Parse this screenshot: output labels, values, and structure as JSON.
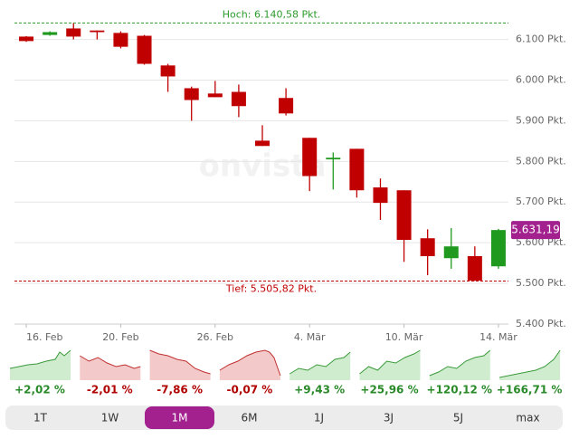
{
  "chart_data": {
    "type": "candlestick",
    "categories": [
      "16. Feb",
      null,
      null,
      null,
      "20. Feb",
      null,
      null,
      null,
      "26. Feb",
      null,
      null,
      null,
      "4. Mär",
      null,
      null,
      null,
      "10. Mär",
      null,
      null,
      null,
      "14. Mär"
    ],
    "series": [
      {
        "name": "open",
        "values": [
          6107,
          6111,
          6127,
          6122,
          6116,
          6109,
          6036,
          5980,
          5967,
          5971,
          5851,
          5956,
          5858,
          5805,
          5831,
          5736,
          5729,
          5611,
          5562,
          5567,
          5542
        ]
      },
      {
        "name": "high",
        "values": [
          6108,
          6120,
          6140,
          6122,
          6120,
          6111,
          6040,
          5984,
          5998,
          5989,
          5889,
          5980,
          5858,
          5822,
          5831,
          5758,
          5729,
          5633,
          5636,
          5591,
          5634
        ]
      },
      {
        "name": "low",
        "values": [
          6094,
          6109,
          6100,
          6100,
          6078,
          6038,
          5971,
          5900,
          5958,
          5909,
          5838,
          5913,
          5727,
          5731,
          5711,
          5656,
          5553,
          5520,
          5536,
          5506,
          5536
        ]
      },
      {
        "name": "close",
        "values": [
          6096,
          6118,
          6107,
          6118,
          6082,
          6040,
          6009,
          5951,
          5958,
          5936,
          5838,
          5918,
          5764,
          5809,
          5729,
          5698,
          5607,
          5567,
          5591,
          5507,
          5631.19
        ]
      }
    ],
    "up_color": "#1f9a1f",
    "down_color": "#c00000",
    "ylim": [
      5400,
      6197
    ],
    "yticks": [
      {
        "value": 5400,
        "label": "5.400 Pkt."
      },
      {
        "value": 5500,
        "label": "5.500 Pkt."
      },
      {
        "value": 5600,
        "label": "5.600 Pkt."
      },
      {
        "value": 5700,
        "label": "5.700 Pkt."
      },
      {
        "value": 5800,
        "label": "5.800 Pkt."
      },
      {
        "value": 5900,
        "label": "5.900 Pkt."
      },
      {
        "value": 6000,
        "label": "6.000 Pkt."
      },
      {
        "value": 6100,
        "label": "6.100 Pkt."
      }
    ],
    "grid": true,
    "high_line": {
      "value": 6140.58,
      "label": "Hoch: 6.140,58 Pkt.",
      "color": "#2e9a2e"
    },
    "low_line": {
      "value": 5505.82,
      "label": "Tief: 5.505,82 Pkt.",
      "color": "#c00000"
    },
    "last_price": {
      "value": 5631.19,
      "label": "5.631,19",
      "color": "#a3208f"
    },
    "watermark": "onvista"
  },
  "performance": [
    {
      "value": 2.02,
      "label": "+2,02 %"
    },
    {
      "value": -2.01,
      "label": "-2,01 %"
    },
    {
      "value": -7.86,
      "label": "-7,86 %"
    },
    {
      "value": -0.07,
      "label": "-0,07 %"
    },
    {
      "value": 9.43,
      "label": "+9,43 %"
    },
    {
      "value": 25.96,
      "label": "+25,96 %"
    },
    {
      "value": 120.12,
      "label": "+120,12 %"
    },
    {
      "value": 166.71,
      "label": "+166,71 %"
    }
  ],
  "tabs": [
    {
      "label": "1T"
    },
    {
      "label": "1W"
    },
    {
      "label": "1M",
      "selected": true
    },
    {
      "label": "6M"
    },
    {
      "label": "1J"
    },
    {
      "label": "3J"
    },
    {
      "label": "5J"
    },
    {
      "label": "max"
    }
  ]
}
